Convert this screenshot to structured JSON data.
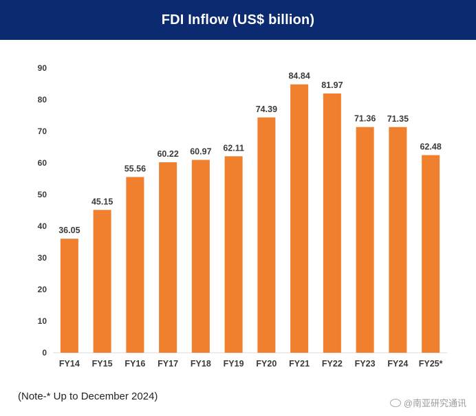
{
  "header": {
    "title": "FDI Inflow (US$ billion)"
  },
  "footer": {
    "note": "(Note-* Up to December 2024)",
    "watermark": "@南亚研究通讯"
  },
  "colors": {
    "header_bg": "#0b2a6f",
    "bar": "#f07f2e"
  },
  "chart_data": {
    "type": "bar",
    "title": "FDI Inflow (US$ billion)",
    "categories": [
      "FY14",
      "FY15",
      "FY16",
      "FY17",
      "FY18",
      "FY19",
      "FY20",
      "FY21",
      "FY22",
      "FY23",
      "FY24",
      "FY25*"
    ],
    "values": [
      36.05,
      45.15,
      55.56,
      60.22,
      60.97,
      62.11,
      74.39,
      84.84,
      81.97,
      71.36,
      71.35,
      62.48
    ],
    "data_labels": [
      "36.05",
      "45.15",
      "55.56",
      "60.22",
      "60.97",
      "62.11",
      "74.39",
      "84.84",
      "81.97",
      "71.36",
      "71.35",
      "62.48"
    ],
    "xlabel": "",
    "ylabel": "",
    "ylim": [
      0,
      90
    ],
    "yticks": [
      0,
      10,
      20,
      30,
      40,
      50,
      60,
      70,
      80,
      90
    ],
    "grid": false,
    "legend": "none"
  }
}
